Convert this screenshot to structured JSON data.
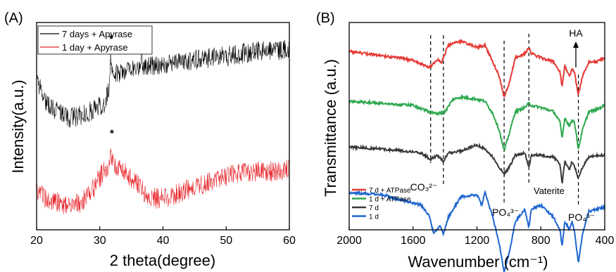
{
  "chart_data": [
    {
      "panel_label": "(A)",
      "type": "line",
      "xlabel": "2 theta(degree)",
      "ylabel": "Intensity(a.u.)",
      "xlim": [
        20,
        60
      ],
      "xticks": [
        20,
        30,
        40,
        50,
        60
      ],
      "xtick_labels": [
        "20",
        "30",
        "40",
        "50",
        "60"
      ],
      "y_ticks_shown": false,
      "legend_position": "top-left",
      "series": [
        {
          "name": "7 days + Apyrase",
          "color": "#000000",
          "baseline": [
            [
              20,
              0.72
            ],
            [
              21.5,
              0.62
            ],
            [
              23,
              0.58
            ],
            [
              25,
              0.54
            ],
            [
              27,
              0.55
            ],
            [
              29,
              0.58
            ],
            [
              30.5,
              0.6
            ],
            [
              31.2,
              0.65
            ],
            [
              32,
              0.74
            ],
            [
              33,
              0.76
            ],
            [
              35,
              0.78
            ],
            [
              40,
              0.8
            ],
            [
              45,
              0.82
            ],
            [
              50,
              0.84
            ],
            [
              55,
              0.86
            ],
            [
              60,
              0.87
            ]
          ],
          "noise_amplitude": 0.05,
          "peaks": [
            {
              "x": 31.7,
              "height": 0.12,
              "marker": "*"
            },
            {
              "x": 36.6,
              "height": 0.06
            }
          ]
        },
        {
          "name": "1 day + Apyrase",
          "color": "#e8262b",
          "baseline": [
            [
              20,
              0.18
            ],
            [
              22,
              0.14
            ],
            [
              25,
              0.12
            ],
            [
              27,
              0.13
            ],
            [
              29,
              0.2
            ],
            [
              30.5,
              0.28
            ],
            [
              31.8,
              0.33
            ],
            [
              33,
              0.3
            ],
            [
              35,
              0.25
            ],
            [
              37,
              0.18
            ],
            [
              39,
              0.15
            ],
            [
              42,
              0.17
            ],
            [
              45,
              0.21
            ],
            [
              48,
              0.24
            ],
            [
              51,
              0.27
            ],
            [
              54,
              0.28
            ],
            [
              57,
              0.28
            ],
            [
              60,
              0.29
            ]
          ],
          "noise_amplitude": 0.05,
          "peaks": [
            {
              "x": 31.8,
              "height": 0.04,
              "marker": "*"
            }
          ]
        }
      ]
    },
    {
      "panel_label": "(B)",
      "type": "line",
      "xlabel": "Wavenumber (cm⁻¹)",
      "ylabel": "Transmittance (a.u.)",
      "xlim": [
        2000,
        400
      ],
      "x_reversed": true,
      "xticks": [
        2000,
        1600,
        1200,
        800,
        400
      ],
      "xtick_labels": [
        "2000",
        "1600",
        "1200",
        "800",
        "400"
      ],
      "y_ticks_shown": false,
      "legend_position": "bottom-left",
      "annotations": {
        "co3": "CO₃²⁻",
        "po4_left": "PO₄³⁻",
        "vaterite": "Vaterite",
        "po4_right": "PO₄³⁻",
        "ha": "HA"
      },
      "reference_lines": [
        1490,
        1410,
        1030,
        875,
        565
      ],
      "series": [
        {
          "name": "7 d + ATPase",
          "color": "#e53935",
          "offset": 0.86,
          "points": [
            [
              2000,
              0.0
            ],
            [
              1800,
              -0.02
            ],
            [
              1600,
              -0.04
            ],
            [
              1500,
              -0.08
            ],
            [
              1450,
              -0.04
            ],
            [
              1420,
              -0.05
            ],
            [
              1380,
              0.03
            ],
            [
              1300,
              0.05
            ],
            [
              1200,
              0.02
            ],
            [
              1150,
              0.03
            ],
            [
              1100,
              -0.05
            ],
            [
              1060,
              -0.12
            ],
            [
              1030,
              -0.22
            ],
            [
              1000,
              -0.16
            ],
            [
              960,
              -0.03
            ],
            [
              900,
              -0.01
            ],
            [
              875,
              0.02
            ],
            [
              860,
              -0.01
            ],
            [
              800,
              -0.03
            ],
            [
              720,
              -0.05
            ],
            [
              680,
              -0.1
            ],
            [
              667,
              -0.17
            ],
            [
              650,
              -0.07
            ],
            [
              620,
              -0.12
            ],
            [
              605,
              -0.08
            ],
            [
              590,
              -0.1
            ],
            [
              565,
              -0.21
            ],
            [
              540,
              -0.12
            ],
            [
              500,
              -0.05
            ],
            [
              450,
              -0.05
            ],
            [
              400,
              -0.03
            ]
          ]
        },
        {
          "name": "1 d + ATPase",
          "color": "#2ea84e",
          "offset": 0.62,
          "points": [
            [
              2000,
              0.0
            ],
            [
              1800,
              -0.01
            ],
            [
              1600,
              -0.02
            ],
            [
              1500,
              -0.05
            ],
            [
              1450,
              -0.06
            ],
            [
              1400,
              -0.05
            ],
            [
              1350,
              0.01
            ],
            [
              1300,
              0.02
            ],
            [
              1200,
              0.01
            ],
            [
              1150,
              0.0
            ],
            [
              1100,
              -0.06
            ],
            [
              1060,
              -0.14
            ],
            [
              1030,
              -0.24
            ],
            [
              1000,
              -0.16
            ],
            [
              960,
              -0.05
            ],
            [
              900,
              -0.03
            ],
            [
              875,
              -0.01
            ],
            [
              860,
              -0.02
            ],
            [
              800,
              -0.03
            ],
            [
              720,
              -0.05
            ],
            [
              680,
              -0.1
            ],
            [
              667,
              -0.18
            ],
            [
              650,
              -0.08
            ],
            [
              620,
              -0.12
            ],
            [
              605,
              -0.09
            ],
            [
              590,
              -0.1
            ],
            [
              565,
              -0.23
            ],
            [
              540,
              -0.14
            ],
            [
              500,
              -0.05
            ],
            [
              450,
              -0.04
            ],
            [
              400,
              -0.02
            ]
          ]
        },
        {
          "name": "7 d",
          "color": "#3a3a3a",
          "offset": 0.4,
          "points": [
            [
              2000,
              0.0
            ],
            [
              1800,
              -0.01
            ],
            [
              1650,
              -0.02
            ],
            [
              1550,
              -0.03
            ],
            [
              1490,
              -0.06
            ],
            [
              1450,
              -0.04
            ],
            [
              1410,
              -0.07
            ],
            [
              1380,
              -0.03
            ],
            [
              1300,
              -0.02
            ],
            [
              1200,
              0.01
            ],
            [
              1150,
              -0.01
            ],
            [
              1100,
              -0.05
            ],
            [
              1060,
              -0.1
            ],
            [
              1030,
              -0.13
            ],
            [
              1000,
              -0.1
            ],
            [
              960,
              -0.04
            ],
            [
              900,
              -0.03
            ],
            [
              875,
              -0.1
            ],
            [
              860,
              -0.04
            ],
            [
              800,
              -0.04
            ],
            [
              720,
              -0.05
            ],
            [
              680,
              -0.08
            ],
            [
              667,
              -0.18
            ],
            [
              650,
              -0.07
            ],
            [
              620,
              -0.11
            ],
            [
              605,
              -0.07
            ],
            [
              590,
              -0.09
            ],
            [
              565,
              -0.15
            ],
            [
              540,
              -0.1
            ],
            [
              500,
              -0.05
            ],
            [
              450,
              -0.04
            ],
            [
              400,
              -0.04
            ]
          ]
        },
        {
          "name": "1 d",
          "color": "#1e66d0",
          "offset": 0.18,
          "points": [
            [
              2000,
              0.0
            ],
            [
              1800,
              -0.01
            ],
            [
              1650,
              -0.04
            ],
            [
              1550,
              -0.06
            ],
            [
              1500,
              -0.11
            ],
            [
              1470,
              -0.2
            ],
            [
              1430,
              -0.16
            ],
            [
              1410,
              -0.2
            ],
            [
              1380,
              -0.12
            ],
            [
              1300,
              -0.02
            ],
            [
              1200,
              -0.01
            ],
            [
              1170,
              -0.06
            ],
            [
              1150,
              0.0
            ],
            [
              1100,
              -0.12
            ],
            [
              1060,
              -0.25
            ],
            [
              1030,
              -0.38
            ],
            [
              1000,
              -0.3
            ],
            [
              960,
              -0.14
            ],
            [
              900,
              -0.08
            ],
            [
              875,
              -0.17
            ],
            [
              860,
              -0.08
            ],
            [
              800,
              -0.06
            ],
            [
              720,
              -0.12
            ],
            [
              680,
              -0.18
            ],
            [
              667,
              -0.26
            ],
            [
              650,
              -0.14
            ],
            [
              620,
              -0.18
            ],
            [
              605,
              -0.14
            ],
            [
              590,
              -0.18
            ],
            [
              565,
              -0.34
            ],
            [
              540,
              -0.2
            ],
            [
              500,
              -0.09
            ],
            [
              450,
              -0.08
            ],
            [
              400,
              -0.07
            ]
          ]
        }
      ]
    }
  ]
}
